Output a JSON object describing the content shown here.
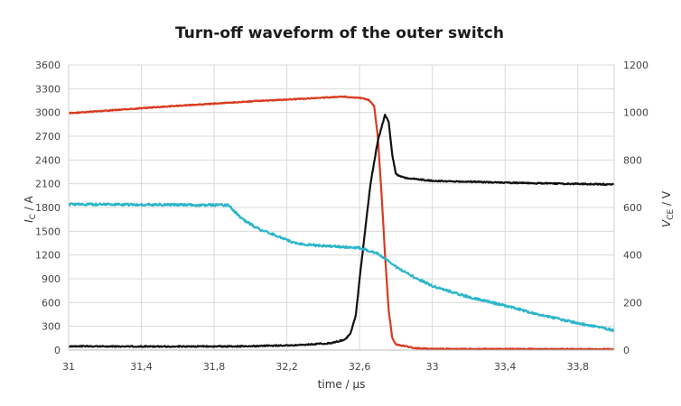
{
  "chart_data": {
    "type": "line",
    "title": "Turn-off waveform of the outer switch",
    "xlabel": "time / µs",
    "ylabel_left": {
      "symbol": "I",
      "subscript": "C",
      "unit": " / A"
    },
    "ylabel_right": {
      "symbol": "V",
      "subscript": "CE",
      "unit": " / V"
    },
    "xlim": [
      31,
      34
    ],
    "ylim_left": [
      0,
      3600
    ],
    "ylim_right": [
      0,
      1200
    ],
    "grid": true,
    "x_ticks": [
      {
        "value": 31,
        "label": "31"
      },
      {
        "value": 31.4,
        "label": "31,4"
      },
      {
        "value": 31.8,
        "label": "31,8"
      },
      {
        "value": 32.2,
        "label": "32,2"
      },
      {
        "value": 32.6,
        "label": "32,6"
      },
      {
        "value": 33,
        "label": "33"
      },
      {
        "value": 33.4,
        "label": "33,4"
      },
      {
        "value": 33.8,
        "label": "33,8"
      }
    ],
    "y_left_ticks": [
      {
        "value": 0,
        "label": "0"
      },
      {
        "value": 300,
        "label": "300"
      },
      {
        "value": 600,
        "label": "600"
      },
      {
        "value": 900,
        "label": "900"
      },
      {
        "value": 1200,
        "label": "1200"
      },
      {
        "value": 1500,
        "label": "1500"
      },
      {
        "value": 1800,
        "label": "1800"
      },
      {
        "value": 2100,
        "label": "2100"
      },
      {
        "value": 2400,
        "label": "2400"
      },
      {
        "value": 2700,
        "label": "2700"
      },
      {
        "value": 3000,
        "label": "3000"
      },
      {
        "value": 3300,
        "label": "3300"
      },
      {
        "value": 3600,
        "label": "3600"
      }
    ],
    "y_right_ticks": [
      {
        "value": 0,
        "label": "0"
      },
      {
        "value": 200,
        "label": "200"
      },
      {
        "value": 400,
        "label": "400"
      },
      {
        "value": 600,
        "label": "600"
      },
      {
        "value": 800,
        "label": "800"
      },
      {
        "value": 1000,
        "label": "1000"
      },
      {
        "value": 1200,
        "label": "1200"
      }
    ],
    "series": [
      {
        "name": "collector-current-red",
        "axis": "left",
        "color": "#d93a1e",
        "noise": 6,
        "points": [
          [
            31,
            2990
          ],
          [
            31.5,
            3070
          ],
          [
            32.0,
            3140
          ],
          [
            32.3,
            3175
          ],
          [
            32.5,
            3200
          ],
          [
            32.6,
            3185
          ],
          [
            32.65,
            3160
          ],
          [
            32.68,
            3080
          ],
          [
            32.7,
            2700
          ],
          [
            32.72,
            2000
          ],
          [
            32.74,
            1200
          ],
          [
            32.76,
            500
          ],
          [
            32.78,
            150
          ],
          [
            32.8,
            70
          ],
          [
            32.85,
            50
          ],
          [
            32.9,
            25
          ],
          [
            33.0,
            15
          ],
          [
            34.0,
            12
          ]
        ]
      },
      {
        "name": "collector-emitter-voltage-black",
        "axis": "right",
        "color": "#111111",
        "noise": 2.5,
        "points": [
          [
            31,
            16
          ],
          [
            31.5,
            15
          ],
          [
            32.0,
            16
          ],
          [
            32.3,
            22
          ],
          [
            32.45,
            30
          ],
          [
            32.52,
            45
          ],
          [
            32.55,
            70
          ],
          [
            32.58,
            150
          ],
          [
            32.6,
            300
          ],
          [
            32.63,
            500
          ],
          [
            32.66,
            700
          ],
          [
            32.7,
            880
          ],
          [
            32.74,
            990
          ],
          [
            32.76,
            960
          ],
          [
            32.78,
            820
          ],
          [
            32.8,
            740
          ],
          [
            32.85,
            725
          ],
          [
            33.0,
            712
          ],
          [
            33.5,
            703
          ],
          [
            34.0,
            697
          ]
        ]
      },
      {
        "name": "gate-voltage-cyan",
        "axis": "left",
        "color": "#2bb5c9",
        "noise": 14,
        "points": [
          [
            31,
            1840
          ],
          [
            31.5,
            1835
          ],
          [
            31.88,
            1830
          ],
          [
            31.95,
            1660
          ],
          [
            32.05,
            1520
          ],
          [
            32.15,
            1440
          ],
          [
            32.22,
            1370
          ],
          [
            32.3,
            1330
          ],
          [
            32.45,
            1310
          ],
          [
            32.6,
            1290
          ],
          [
            32.7,
            1220
          ],
          [
            32.8,
            1050
          ],
          [
            32.9,
            920
          ],
          [
            33.0,
            810
          ],
          [
            33.2,
            670
          ],
          [
            33.4,
            560
          ],
          [
            33.6,
            440
          ],
          [
            33.8,
            340
          ],
          [
            34.0,
            250
          ]
        ]
      }
    ]
  }
}
